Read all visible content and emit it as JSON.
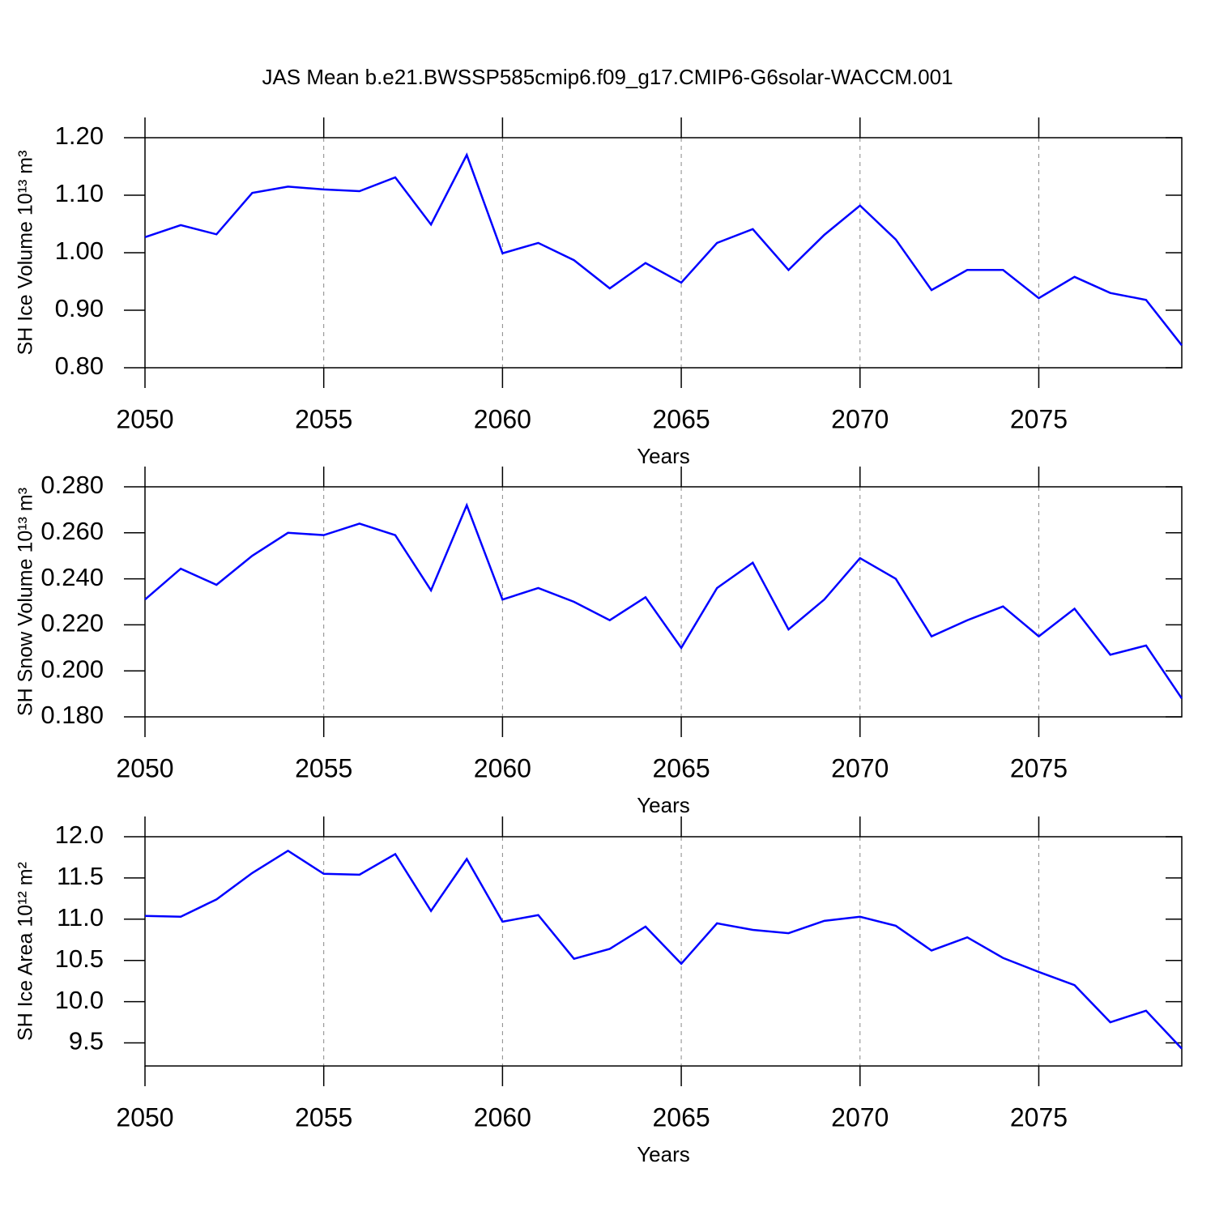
{
  "title": "JAS Mean b.e21.BWSSP585cmip6.f09_g17.CMIP6-G6solar-WACCM.001",
  "chart_data": [
    {
      "type": "line",
      "ylabel": "SH Ice Volume 10¹³ m³",
      "xlabel": "Years",
      "x": [
        2050,
        2051,
        2052,
        2053,
        2054,
        2055,
        2056,
        2057,
        2058,
        2059,
        2060,
        2061,
        2062,
        2063,
        2064,
        2065,
        2066,
        2067,
        2068,
        2069,
        2070,
        2071,
        2072,
        2073,
        2074,
        2075,
        2076,
        2077,
        2078,
        2079
      ],
      "series": [
        {
          "color": "#0000ff",
          "values": [
            1.027,
            1.048,
            1.032,
            1.104,
            1.115,
            1.11,
            1.107,
            1.131,
            1.049,
            1.17,
            0.999,
            1.017,
            0.987,
            0.938,
            0.982,
            0.948,
            1.017,
            1.041,
            0.97,
            1.031,
            1.082,
            1.023,
            0.935,
            0.97,
            0.97,
            0.921,
            0.958,
            0.93,
            0.918,
            0.839
          ]
        }
      ],
      "xlim": [
        2050,
        2079
      ],
      "xticks": [
        2050,
        2055,
        2060,
        2065,
        2070,
        2075
      ],
      "ylim": [
        0.8,
        1.2
      ],
      "yticks": [
        {
          "value": 0.8,
          "label": "0.80"
        },
        {
          "value": 0.9,
          "label": "0.90"
        },
        {
          "value": 1.0,
          "label": "1.00"
        },
        {
          "value": 1.1,
          "label": "1.10"
        },
        {
          "value": 1.2,
          "label": "1.20"
        }
      ],
      "grid": true
    },
    {
      "type": "line",
      "ylabel": "SH Snow Volume 10¹³ m³",
      "xlabel": "Years",
      "x": [
        2050,
        2051,
        2052,
        2053,
        2054,
        2055,
        2056,
        2057,
        2058,
        2059,
        2060,
        2061,
        2062,
        2063,
        2064,
        2065,
        2066,
        2067,
        2068,
        2069,
        2070,
        2071,
        2072,
        2073,
        2074,
        2075,
        2076,
        2077,
        2078,
        2079
      ],
      "series": [
        {
          "color": "#0000ff",
          "values": [
            0.231,
            0.2444,
            0.2374,
            0.25,
            0.26,
            0.259,
            0.264,
            0.259,
            0.235,
            0.272,
            0.231,
            0.236,
            0.23,
            0.222,
            0.232,
            0.21,
            0.236,
            0.247,
            0.218,
            0.231,
            0.249,
            0.24,
            0.215,
            0.222,
            0.228,
            0.215,
            0.227,
            0.207,
            0.211,
            0.188
          ]
        }
      ],
      "xlim": [
        2050,
        2079
      ],
      "xticks": [
        2050,
        2055,
        2060,
        2065,
        2070,
        2075
      ],
      "ylim": [
        0.18,
        0.28
      ],
      "yticks": [
        {
          "value": 0.18,
          "label": "0.180"
        },
        {
          "value": 0.2,
          "label": "0.200"
        },
        {
          "value": 0.22,
          "label": "0.220"
        },
        {
          "value": 0.24,
          "label": "0.240"
        },
        {
          "value": 0.26,
          "label": "0.260"
        },
        {
          "value": 0.28,
          "label": "0.280"
        }
      ],
      "grid": true
    },
    {
      "type": "line",
      "ylabel": "SH Ice Area 10¹² m²",
      "xlabel": "Years",
      "x": [
        2050,
        2051,
        2052,
        2053,
        2054,
        2055,
        2056,
        2057,
        2058,
        2059,
        2060,
        2061,
        2062,
        2063,
        2064,
        2065,
        2066,
        2067,
        2068,
        2069,
        2070,
        2071,
        2072,
        2073,
        2074,
        2075,
        2076,
        2077,
        2078,
        2079
      ],
      "series": [
        {
          "color": "#0000ff",
          "values": [
            11.04,
            11.03,
            11.24,
            11.56,
            11.83,
            11.55,
            11.54,
            11.79,
            11.1,
            11.73,
            10.97,
            11.05,
            10.52,
            10.64,
            10.91,
            10.46,
            10.95,
            10.87,
            10.83,
            10.98,
            11.03,
            10.92,
            10.62,
            10.78,
            10.53,
            10.36,
            10.2,
            9.75,
            9.89,
            9.43
          ]
        }
      ],
      "xlim": [
        2050,
        2079
      ],
      "xticks": [
        2050,
        2055,
        2060,
        2065,
        2070,
        2075
      ],
      "ylim": [
        9.22,
        12.0
      ],
      "yticks": [
        9.5,
        {
          "value": 10.0,
          "label": "10.0"
        },
        {
          "value": 10.5,
          "label": "10.5"
        },
        {
          "value": 11.0,
          "label": "11.0"
        },
        {
          "value": 11.5,
          "label": "11.5"
        },
        {
          "value": 12.0,
          "label": "12.0"
        }
      ],
      "grid": true
    }
  ]
}
